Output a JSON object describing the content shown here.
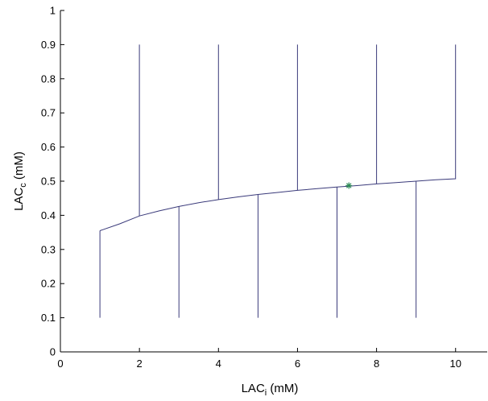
{
  "chart_data": {
    "type": "line",
    "title": "",
    "xlabel": {
      "base": "LAC",
      "sub": "i",
      "unit": " (mM)"
    },
    "ylabel": {
      "base": "LAC",
      "sub": "c",
      "unit": " (mM)"
    },
    "xlim": [
      0,
      10.8
    ],
    "ylim": [
      0,
      1
    ],
    "xticks": [
      0,
      2,
      4,
      6,
      8,
      10
    ],
    "yticks": [
      0,
      0.1,
      0.2,
      0.3,
      0.4,
      0.5,
      0.6,
      0.7,
      0.8,
      0.9,
      1
    ],
    "grid": false,
    "legend": "none",
    "colors": {
      "lines": "#3a3a7a",
      "marker": "#2e8b57",
      "axes": "#000000"
    },
    "series": [
      {
        "x": [
          1,
          1.5,
          2,
          2.5,
          3,
          3.5,
          4,
          4.5,
          5,
          5.5,
          6,
          6.5,
          7,
          7.5,
          8,
          8.5,
          9,
          9.5,
          10,
          10,
          10
        ],
        "y": [
          0.355,
          0.375,
          0.398,
          0.413,
          0.426,
          0.437,
          0.446,
          0.454,
          0.461,
          0.467,
          0.473,
          0.478,
          0.483,
          0.487,
          0.492,
          0.496,
          0.5,
          0.504,
          0.507,
          0.507,
          0.9
        ]
      },
      {
        "x": [
          1,
          1
        ],
        "y": [
          0.1,
          0.355
        ]
      },
      {
        "x": [
          2,
          2
        ],
        "y": [
          0.398,
          0.9
        ]
      },
      {
        "x": [
          3,
          3
        ],
        "y": [
          0.1,
          0.426
        ]
      },
      {
        "x": [
          4,
          4
        ],
        "y": [
          0.446,
          0.9
        ]
      },
      {
        "x": [
          5,
          5
        ],
        "y": [
          0.1,
          0.461
        ]
      },
      {
        "x": [
          6,
          6
        ],
        "y": [
          0.473,
          0.9
        ]
      },
      {
        "x": [
          7,
          7
        ],
        "y": [
          0.1,
          0.483
        ]
      },
      {
        "x": [
          8,
          8
        ],
        "y": [
          0.492,
          0.9
        ]
      },
      {
        "x": [
          9,
          9
        ],
        "y": [
          0.1,
          0.5
        ]
      }
    ],
    "markers": [
      {
        "symbol": "*",
        "x": 7.3,
        "y": 0.487
      }
    ]
  }
}
